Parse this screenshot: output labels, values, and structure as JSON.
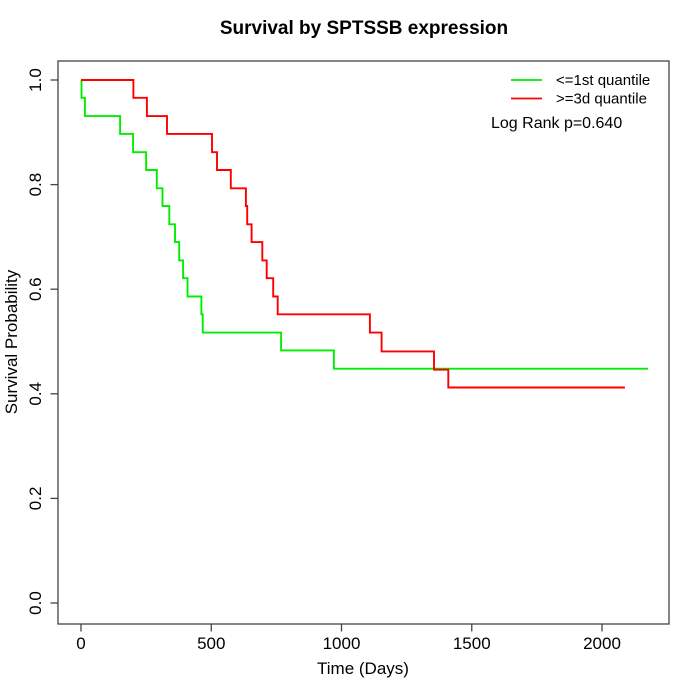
{
  "title": "Survival by SPTSSB expression",
  "colors": {
    "group1": "#00ee00",
    "group2": "#ff0000",
    "axis": "#444444",
    "text": "#000000",
    "background": "#ffffff"
  },
  "legend": {
    "note": "Log Rank p=0.640"
  },
  "chart_data": {
    "type": "line",
    "subtype": "kaplan-meier-step",
    "title": "Survival by SPTSSB expression",
    "xlabel": "Time (Days)",
    "ylabel": "Survival Probability",
    "xticks": [
      0,
      500,
      1000,
      1500,
      2000
    ],
    "yticks": [
      0.0,
      0.2,
      0.4,
      0.6,
      0.8,
      1.0
    ],
    "ytick_labels": [
      "0.0",
      "0.2",
      "0.4",
      "0.6",
      "0.8",
      "1.0"
    ],
    "xlim": [
      0,
      2250
    ],
    "ylim": [
      0.0,
      1.0
    ],
    "grid": false,
    "legend_position": "top-right",
    "annotation": "Log Rank p=0.640",
    "series": [
      {
        "name": "<=1st quantile",
        "color": "#00ee00",
        "end_time": 2177,
        "steps": [
          [
            0,
            1.0
          ],
          [
            2,
            0.966
          ],
          [
            15,
            0.931
          ],
          [
            150,
            0.897
          ],
          [
            200,
            0.862
          ],
          [
            250,
            0.828
          ],
          [
            291,
            0.793
          ],
          [
            313,
            0.759
          ],
          [
            339,
            0.724
          ],
          [
            361,
            0.69
          ],
          [
            377,
            0.655
          ],
          [
            392,
            0.621
          ],
          [
            409,
            0.586
          ],
          [
            462,
            0.552
          ],
          [
            467,
            0.517
          ],
          [
            768,
            0.483
          ],
          [
            971,
            0.448
          ]
        ]
      },
      {
        "name": ">=3d quantile",
        "color": "#ff0000",
        "end_time": 2088,
        "steps": [
          [
            0,
            1.0
          ],
          [
            201,
            0.966
          ],
          [
            253,
            0.931
          ],
          [
            330,
            0.897
          ],
          [
            503,
            0.862
          ],
          [
            522,
            0.828
          ],
          [
            575,
            0.793
          ],
          [
            633,
            0.759
          ],
          [
            638,
            0.724
          ],
          [
            655,
            0.69
          ],
          [
            696,
            0.655
          ],
          [
            713,
            0.621
          ],
          [
            738,
            0.586
          ],
          [
            755,
            0.552
          ],
          [
            1109,
            0.517
          ],
          [
            1154,
            0.481
          ],
          [
            1355,
            0.446
          ],
          [
            1410,
            0.412
          ]
        ]
      }
    ]
  }
}
